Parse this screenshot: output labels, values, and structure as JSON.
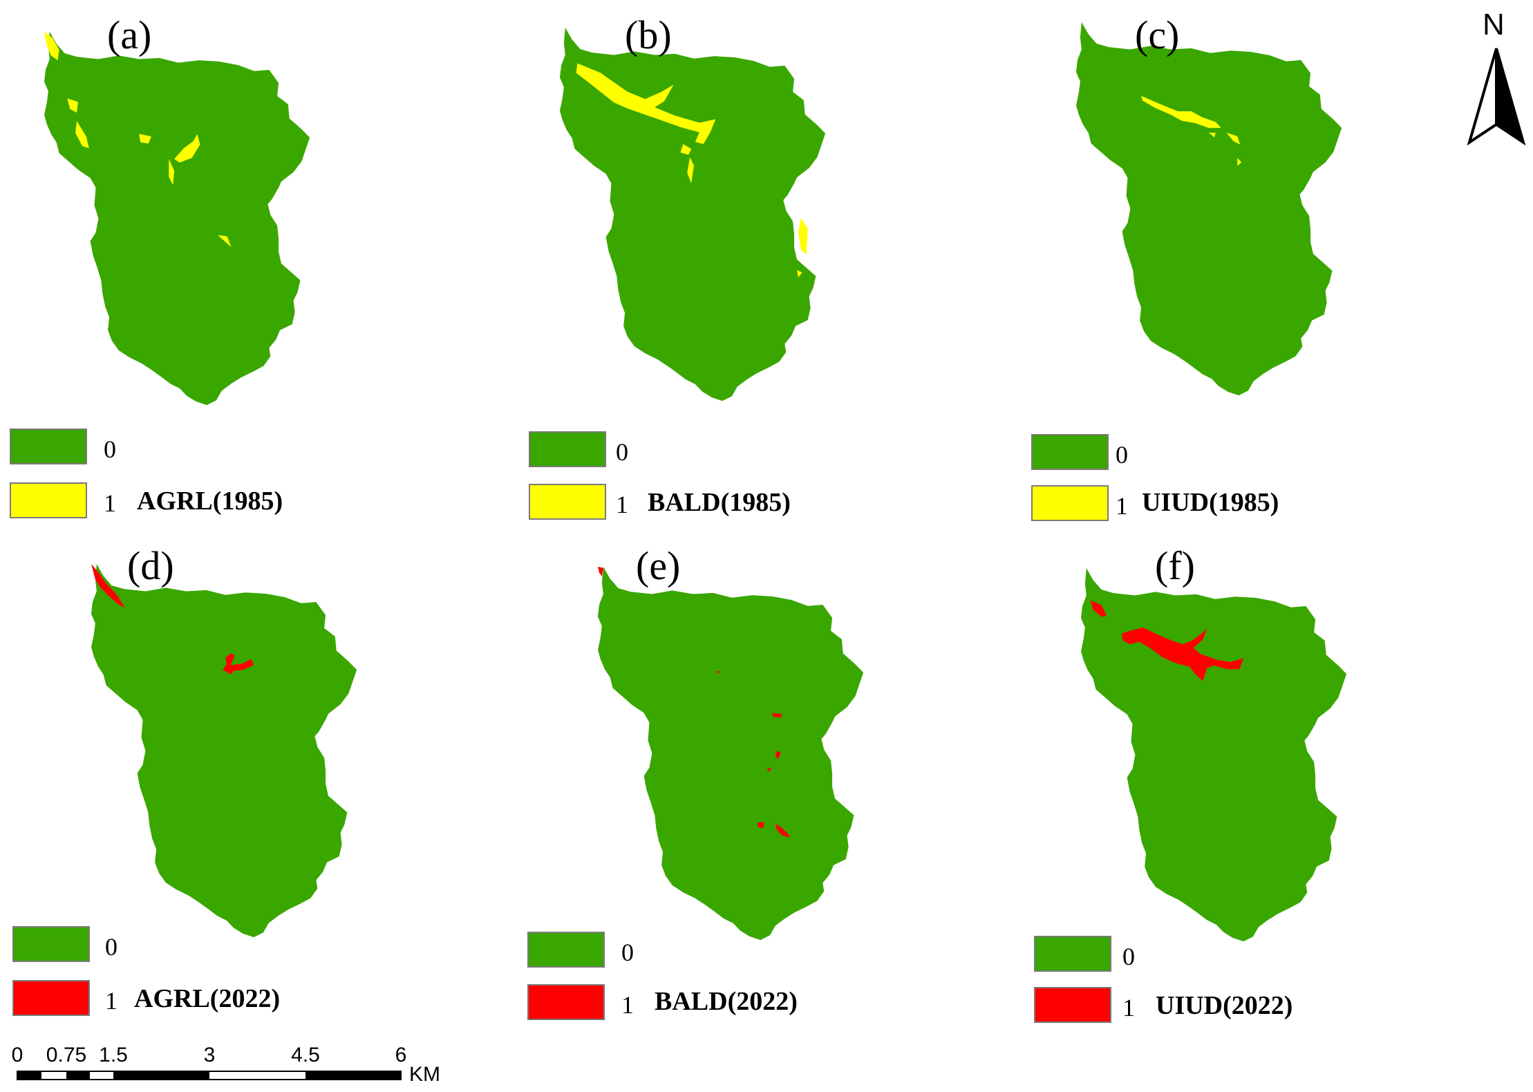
{
  "colors": {
    "background_class": "#3aa600",
    "change_1985": "#ffff00",
    "change_2022": "#ff0000"
  },
  "panels": [
    {
      "label": "(a)",
      "legend": [
        {
          "value": "0"
        },
        {
          "value": "1"
        }
      ],
      "title": "AGRL(1985)"
    },
    {
      "label": "(b)",
      "legend": [
        {
          "value": "0"
        },
        {
          "value": "1"
        }
      ],
      "title": "BALD(1985)"
    },
    {
      "label": "(c)",
      "legend": [
        {
          "value": "0"
        },
        {
          "value": "1"
        }
      ],
      "title": "UIUD(1985)"
    },
    {
      "label": "(d)",
      "legend": [
        {
          "value": "0"
        },
        {
          "value": "1"
        }
      ],
      "title": "AGRL(2022)"
    },
    {
      "label": "(e)",
      "legend": [
        {
          "value": "0"
        },
        {
          "value": "1"
        }
      ],
      "title": "BALD(2022)"
    },
    {
      "label": "(f)",
      "legend": [
        {
          "value": "0"
        },
        {
          "value": "1"
        }
      ],
      "title": "UIUD(2022)"
    }
  ],
  "north_arrow": {
    "letter": "N",
    "icon": "north-arrow-icon"
  },
  "scale_bar": {
    "ticks": [
      "0",
      "0.75",
      "1.5",
      "3",
      "4.5",
      "6"
    ],
    "unit": "KM"
  }
}
